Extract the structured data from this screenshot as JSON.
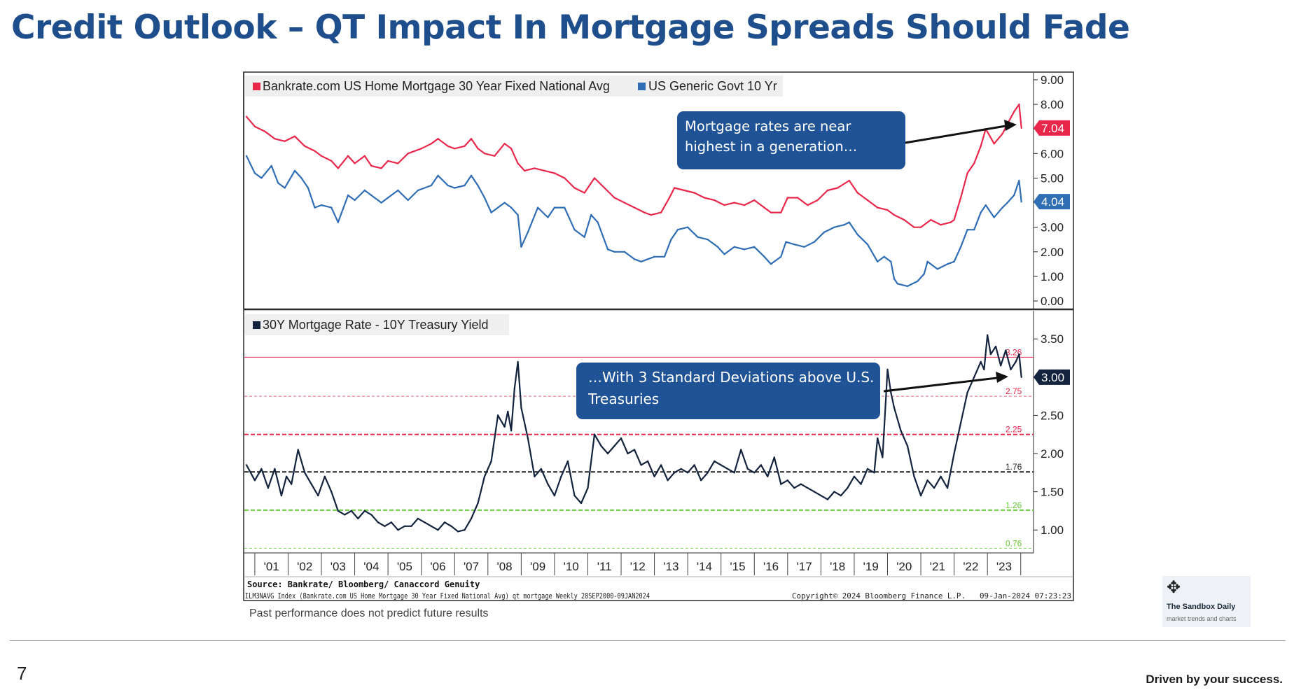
{
  "page": {
    "title": "Credit Outlook – QT Impact In Mortgage Spreads Should Fade",
    "disclaimer": "Past performance does not predict future results",
    "page_number": "7",
    "tagline": "Driven by your success.",
    "badge_name": "The Sandbox Daily",
    "badge_sub": "market trends and charts",
    "badge_icon": "move-arrows-icon"
  },
  "footer": {
    "source": "Source:  Bankrate/ Bloomberg/ Canaccord Genuity",
    "meta_left": "ILM3NAVG Index (Bankrate.com US Home Mortgage 30 Year Fixed National Avg) qt mortgage  Weekly 28SEP2000-09JAN2024",
    "meta_mid": "Copyright© 2024 Bloomberg Finance L.P.",
    "meta_right": "09-Jan-2024 07:23:23"
  },
  "colors": {
    "title": "#1f4e8c",
    "mortgage": "#e8274b",
    "treasury": "#2f6db5",
    "spread": "#14233d",
    "callout": "#1f5396"
  },
  "chart_data": [
    {
      "type": "line",
      "title": "",
      "x_axis": "year",
      "ylim": [
        0,
        9
      ],
      "yticks": [
        "0.00",
        "1.00",
        "2.00",
        "3.00",
        "4.00",
        "5.00",
        "6.00",
        "7.00",
        "8.00",
        "9.00"
      ],
      "legend_placement": "top-left",
      "series": [
        {
          "name": "Bankrate.com US Home Mortgage 30 Year Fixed National Avg",
          "color": "#e8274b",
          "last_label": "7.04",
          "x": [
            2000.75,
            2001.0,
            2001.3,
            2001.6,
            2001.9,
            2002.2,
            2002.5,
            2002.8,
            2003.0,
            2003.3,
            2003.5,
            2003.8,
            2004.0,
            2004.3,
            2004.5,
            2004.8,
            2005.0,
            2005.3,
            2005.6,
            2006.0,
            2006.3,
            2006.5,
            2006.8,
            2007.0,
            2007.3,
            2007.5,
            2007.7,
            2007.9,
            2008.2,
            2008.5,
            2008.7,
            2008.9,
            2009.1,
            2009.4,
            2009.7,
            2010.0,
            2010.3,
            2010.6,
            2010.9,
            2011.2,
            2011.5,
            2011.8,
            2012.1,
            2012.4,
            2012.7,
            2012.9,
            2013.2,
            2013.45,
            2013.6,
            2013.9,
            2014.2,
            2014.5,
            2014.8,
            2015.1,
            2015.4,
            2015.7,
            2016.0,
            2016.3,
            2016.5,
            2016.8,
            2017.0,
            2017.3,
            2017.6,
            2017.9,
            2018.2,
            2018.5,
            2018.85,
            2019.1,
            2019.4,
            2019.7,
            2020.0,
            2020.2,
            2020.5,
            2020.8,
            2021.0,
            2021.3,
            2021.6,
            2021.9,
            2022.0,
            2022.2,
            2022.4,
            2022.6,
            2022.8,
            2022.95,
            2023.2,
            2023.45,
            2023.6,
            2023.8,
            2023.95,
            2024.02
          ],
          "y": [
            7.5,
            7.1,
            6.9,
            6.6,
            6.5,
            6.7,
            6.3,
            6.1,
            5.9,
            5.7,
            5.4,
            5.9,
            5.6,
            5.9,
            5.5,
            5.4,
            5.7,
            5.6,
            6.0,
            6.2,
            6.4,
            6.6,
            6.3,
            6.2,
            6.3,
            6.6,
            6.2,
            6.0,
            5.9,
            6.4,
            6.2,
            5.6,
            5.3,
            5.4,
            5.3,
            5.2,
            5.0,
            4.6,
            4.4,
            5.0,
            4.6,
            4.2,
            4.0,
            3.8,
            3.6,
            3.5,
            3.6,
            4.2,
            4.6,
            4.5,
            4.4,
            4.2,
            4.1,
            3.9,
            4.0,
            3.9,
            4.1,
            3.8,
            3.6,
            3.6,
            4.2,
            4.2,
            3.9,
            4.1,
            4.5,
            4.6,
            4.9,
            4.4,
            4.1,
            3.8,
            3.7,
            3.5,
            3.3,
            3.0,
            3.0,
            3.3,
            3.1,
            3.2,
            3.3,
            4.2,
            5.2,
            5.6,
            6.3,
            7.0,
            6.4,
            6.8,
            7.2,
            7.7,
            8.0,
            7.04
          ]
        },
        {
          "name": "US Generic Govt 10 Yr",
          "color": "#2f6db5",
          "last_label": "4.04",
          "x": [
            2000.75,
            2001.0,
            2001.2,
            2001.5,
            2001.7,
            2001.9,
            2002.2,
            2002.4,
            2002.6,
            2002.8,
            2003.0,
            2003.3,
            2003.5,
            2003.8,
            2004.0,
            2004.3,
            2004.5,
            2004.8,
            2005.0,
            2005.3,
            2005.6,
            2005.9,
            2006.3,
            2006.5,
            2006.8,
            2007.0,
            2007.3,
            2007.5,
            2007.7,
            2007.9,
            2008.1,
            2008.3,
            2008.5,
            2008.7,
            2008.9,
            2009.0,
            2009.2,
            2009.5,
            2009.8,
            2010.0,
            2010.3,
            2010.6,
            2010.9,
            2011.1,
            2011.3,
            2011.6,
            2011.8,
            2012.1,
            2012.4,
            2012.6,
            2012.8,
            2013.0,
            2013.3,
            2013.5,
            2013.7,
            2014.0,
            2014.3,
            2014.6,
            2014.9,
            2015.1,
            2015.4,
            2015.7,
            2016.0,
            2016.3,
            2016.5,
            2016.8,
            2016.95,
            2017.2,
            2017.5,
            2017.8,
            2018.1,
            2018.4,
            2018.7,
            2018.85,
            2019.1,
            2019.4,
            2019.7,
            2019.9,
            2020.1,
            2020.2,
            2020.3,
            2020.6,
            2020.9,
            2021.1,
            2021.2,
            2021.5,
            2021.8,
            2022.0,
            2022.2,
            2022.4,
            2022.6,
            2022.8,
            2022.95,
            2023.2,
            2023.45,
            2023.6,
            2023.8,
            2023.95,
            2024.02
          ],
          "y": [
            5.9,
            5.2,
            5.0,
            5.5,
            4.8,
            4.6,
            5.3,
            5.0,
            4.6,
            3.8,
            3.9,
            3.8,
            3.2,
            4.3,
            4.1,
            4.5,
            4.3,
            4.0,
            4.2,
            4.5,
            4.1,
            4.5,
            4.7,
            5.1,
            4.7,
            4.6,
            4.7,
            5.1,
            4.7,
            4.2,
            3.6,
            3.8,
            4.0,
            3.8,
            3.5,
            2.2,
            2.8,
            3.8,
            3.4,
            3.8,
            3.8,
            2.9,
            2.6,
            3.5,
            3.2,
            2.1,
            2.0,
            2.0,
            1.7,
            1.6,
            1.7,
            1.8,
            1.8,
            2.5,
            2.9,
            3.0,
            2.6,
            2.5,
            2.2,
            1.9,
            2.2,
            2.1,
            2.2,
            1.8,
            1.5,
            1.8,
            2.4,
            2.3,
            2.2,
            2.4,
            2.8,
            3.0,
            3.1,
            3.2,
            2.7,
            2.3,
            1.6,
            1.8,
            1.6,
            0.9,
            0.7,
            0.6,
            0.8,
            1.1,
            1.6,
            1.3,
            1.5,
            1.6,
            2.2,
            2.9,
            2.9,
            3.6,
            3.9,
            3.4,
            3.8,
            4.0,
            4.3,
            4.9,
            4.04
          ]
        }
      ],
      "annotation": "Mortgage rates are near highest in a generation…"
    },
    {
      "type": "line",
      "title": "",
      "x_axis": "year",
      "ylim": [
        0.7,
        3.85
      ],
      "yticks": [
        "1.00",
        "1.50",
        "2.00",
        "2.50",
        "3.00",
        "3.50"
      ],
      "legend_placement": "top-left",
      "series": [
        {
          "name": "30Y Mortgage Rate - 10Y Treasury Yield",
          "color": "#14233d",
          "last_label": "3.00",
          "x": [
            2000.75,
            2001.0,
            2001.2,
            2001.4,
            2001.6,
            2001.8,
            2001.95,
            2002.1,
            2002.3,
            2002.5,
            2002.7,
            2002.9,
            2003.1,
            2003.3,
            2003.5,
            2003.7,
            2003.9,
            2004.1,
            2004.3,
            2004.5,
            2004.7,
            2004.9,
            2005.1,
            2005.3,
            2005.5,
            2005.7,
            2005.9,
            2006.1,
            2006.3,
            2006.5,
            2006.7,
            2006.9,
            2007.1,
            2007.3,
            2007.5,
            2007.7,
            2007.9,
            2008.1,
            2008.3,
            2008.5,
            2008.6,
            2008.7,
            2008.8,
            2008.9,
            2009.0,
            2009.2,
            2009.4,
            2009.6,
            2009.8,
            2010.0,
            2010.2,
            2010.4,
            2010.6,
            2010.8,
            2011.0,
            2011.2,
            2011.4,
            2011.6,
            2011.8,
            2012.0,
            2012.2,
            2012.4,
            2012.6,
            2012.8,
            2013.0,
            2013.2,
            2013.4,
            2013.6,
            2013.8,
            2014.0,
            2014.2,
            2014.4,
            2014.6,
            2014.8,
            2015.0,
            2015.2,
            2015.4,
            2015.6,
            2015.8,
            2016.0,
            2016.2,
            2016.4,
            2016.6,
            2016.8,
            2017.0,
            2017.2,
            2017.4,
            2017.6,
            2017.8,
            2018.0,
            2018.2,
            2018.4,
            2018.6,
            2018.8,
            2019.0,
            2019.2,
            2019.4,
            2019.6,
            2019.7,
            2019.85,
            2020.0,
            2020.1,
            2020.2,
            2020.4,
            2020.6,
            2020.8,
            2021.0,
            2021.2,
            2021.4,
            2021.6,
            2021.8,
            2022.0,
            2022.2,
            2022.4,
            2022.6,
            2022.8,
            2022.9,
            2023.0,
            2023.1,
            2023.25,
            2023.4,
            2023.55,
            2023.7,
            2023.85,
            2023.95,
            2024.02
          ],
          "y": [
            1.85,
            1.65,
            1.8,
            1.55,
            1.8,
            1.45,
            1.7,
            1.6,
            2.05,
            1.75,
            1.6,
            1.45,
            1.7,
            1.5,
            1.25,
            1.2,
            1.25,
            1.15,
            1.25,
            1.2,
            1.1,
            1.05,
            1.1,
            1.0,
            1.05,
            1.05,
            1.15,
            1.1,
            1.05,
            1.0,
            1.1,
            1.05,
            0.98,
            1.0,
            1.15,
            1.35,
            1.7,
            1.9,
            2.5,
            2.35,
            2.55,
            2.3,
            2.85,
            3.2,
            2.6,
            2.2,
            1.7,
            1.8,
            1.6,
            1.45,
            1.7,
            1.9,
            1.45,
            1.35,
            1.55,
            2.25,
            2.1,
            2.0,
            2.1,
            2.2,
            2.0,
            2.05,
            1.85,
            1.9,
            1.7,
            1.85,
            1.65,
            1.75,
            1.8,
            1.75,
            1.85,
            1.65,
            1.75,
            1.9,
            1.85,
            1.8,
            1.75,
            2.05,
            1.8,
            1.75,
            1.85,
            1.7,
            1.95,
            1.6,
            1.65,
            1.55,
            1.6,
            1.55,
            1.5,
            1.45,
            1.4,
            1.5,
            1.45,
            1.55,
            1.7,
            1.6,
            1.8,
            1.75,
            2.2,
            1.95,
            3.1,
            2.8,
            2.6,
            2.3,
            2.1,
            1.7,
            1.45,
            1.65,
            1.55,
            1.7,
            1.55,
            2.0,
            2.4,
            2.8,
            3.0,
            3.2,
            3.1,
            3.55,
            3.3,
            3.4,
            3.15,
            3.35,
            3.1,
            3.2,
            3.3,
            3.0
          ]
        }
      ],
      "reference_lines": [
        {
          "value": 3.26,
          "label": "3.26",
          "color": "#e8274b",
          "style": "solid"
        },
        {
          "value": 2.75,
          "label": "2.75",
          "color": "#e8274b",
          "style": "dashed-light"
        },
        {
          "value": 2.25,
          "label": "2.25",
          "color": "#e8274b",
          "style": "dashed"
        },
        {
          "value": 1.76,
          "label": "1.76",
          "color": "#222222",
          "style": "dashed"
        },
        {
          "value": 1.26,
          "label": "1.26",
          "color": "#66cc33",
          "style": "dashed"
        },
        {
          "value": 0.76,
          "label": "0.76",
          "color": "#66cc33",
          "style": "dashed-light"
        }
      ],
      "annotation": "…With 3 Standard Deviations above U.S. Treasuries"
    }
  ],
  "x_ticks": {
    "labels": [
      "'01",
      "'02",
      "'03",
      "'04",
      "'05",
      "'06",
      "'07",
      "'08",
      "'09",
      "'10",
      "'11",
      "'12",
      "'13",
      "'14",
      "'15",
      "'16",
      "'17",
      "'18",
      "'19",
      "'20",
      "'21",
      "'22",
      "'23"
    ],
    "start_year": 2001,
    "range": [
      2000.75,
      2024.3
    ]
  }
}
